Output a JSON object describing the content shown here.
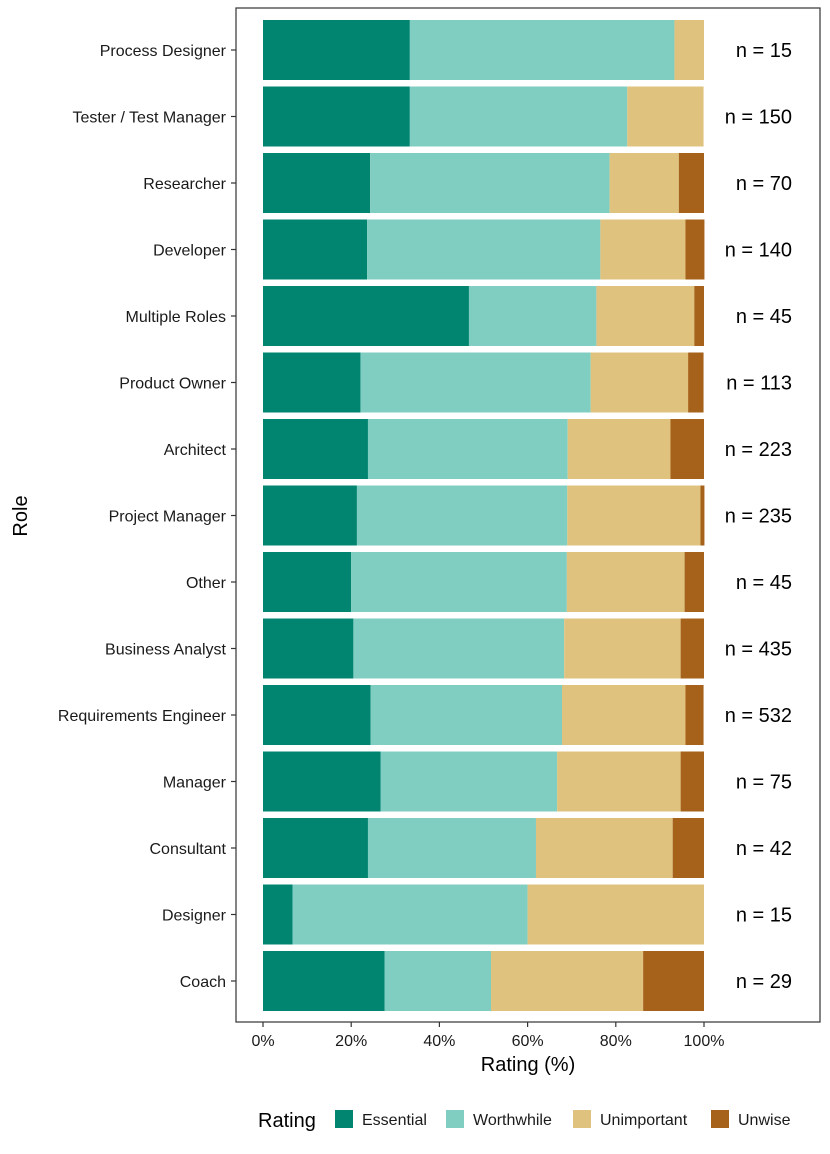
{
  "chart_data": {
    "type": "bar",
    "orientation": "horizontal",
    "stacked": true,
    "normalized_percent": true,
    "title": "",
    "xlabel": "Rating (%)",
    "ylabel": "Role",
    "xlim": [
      0,
      100
    ],
    "x_ticks": [
      0,
      20,
      40,
      60,
      80,
      100
    ],
    "x_tick_labels": [
      "0%",
      "20%",
      "40%",
      "60%",
      "80%",
      "100%"
    ],
    "grid": false,
    "legend": {
      "title": "Rating",
      "position": "bottom"
    },
    "categories": [
      "Process Designer",
      "Tester / Test Manager",
      "Researcher",
      "Developer",
      "Multiple Roles",
      "Product Owner",
      "Architect",
      "Project Manager",
      "Other",
      "Business Analyst",
      "Requirements Engineer",
      "Manager",
      "Consultant",
      "Designer",
      "Coach"
    ],
    "n_labels": [
      "n = 15",
      "n = 150",
      "n = 70",
      "n = 140",
      "n = 45",
      "n = 113",
      "n = 223",
      "n = 235",
      "n = 45",
      "n = 435",
      "n = 532",
      "n = 75",
      "n = 42",
      "n = 15",
      "n = 29"
    ],
    "series": [
      {
        "name": "Essential",
        "color": "#018571",
        "values": [
          33.3,
          33.3,
          24.3,
          23.6,
          46.7,
          22.1,
          23.8,
          21.3,
          20.0,
          20.5,
          24.4,
          26.7,
          23.8,
          6.7,
          27.6
        ]
      },
      {
        "name": "Worthwhile",
        "color": "#80cdc1",
        "values": [
          60.0,
          49.3,
          54.3,
          52.9,
          28.9,
          52.2,
          45.3,
          47.7,
          48.9,
          47.8,
          43.4,
          40.0,
          38.1,
          53.3,
          24.1
        ]
      },
      {
        "name": "Unimportant",
        "color": "#dfc27d",
        "values": [
          6.7,
          17.3,
          15.7,
          19.3,
          22.2,
          22.1,
          23.3,
          30.2,
          26.7,
          26.4,
          28.0,
          28.0,
          31.0,
          40.0,
          34.5
        ]
      },
      {
        "name": "Unwise",
        "color": "#a6611a",
        "values": [
          0.0,
          0.0,
          5.7,
          4.3,
          2.2,
          3.5,
          7.6,
          0.9,
          4.4,
          5.3,
          4.1,
          5.3,
          7.1,
          0.0,
          13.8
        ]
      }
    ]
  }
}
